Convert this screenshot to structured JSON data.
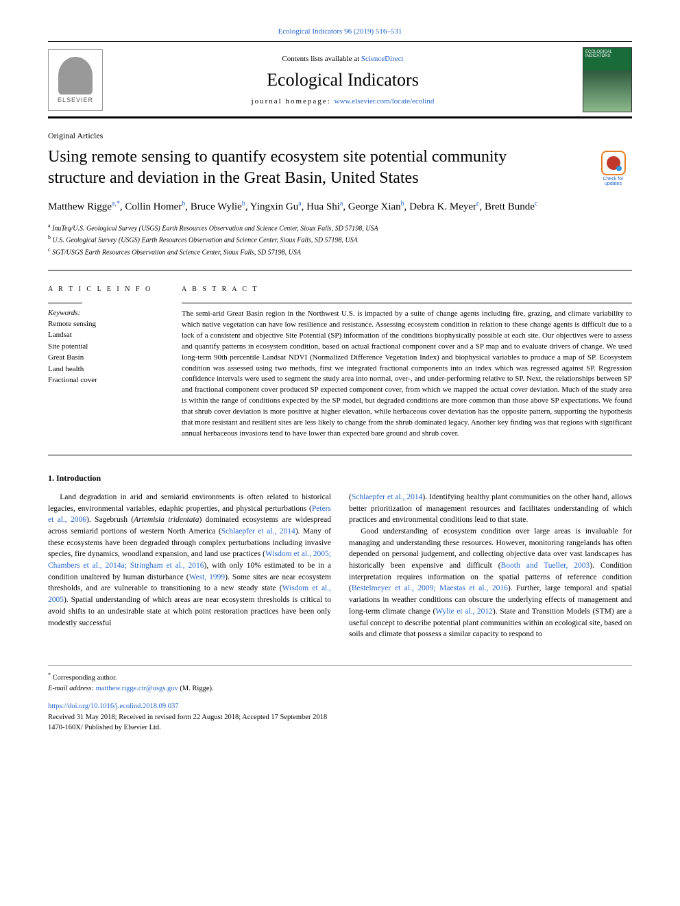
{
  "header": {
    "citation": "Ecological Indicators 96 (2019) 516–531",
    "contents_prefix": "Contents lists available at ",
    "contents_link": "ScienceDirect",
    "journal_title": "Ecological Indicators",
    "homepage_label": "journal homepage: ",
    "homepage_url": "www.elsevier.com/locate/ecolind",
    "publisher": "ELSEVIER",
    "cover_caption": "ECOLOGICAL INDICATORS"
  },
  "article": {
    "type": "Original Articles",
    "title": "Using remote sensing to quantify ecosystem site potential community structure and deviation in the Great Basin, United States",
    "check_updates": "Check for updates",
    "authors_html": "Matthew Rigge<span class='sup'>a,*</span>, Collin Homer<span class='sup'>b</span>, Bruce Wylie<span class='sup'>b</span>, Yingxin Gu<span class='sup'>a</span>, Hua Shi<span class='sup'>a</span>, George Xian<span class='sup'>b</span>, Debra K. Meyer<span class='sup'>c</span>, Brett Bunde<span class='sup'>c</span>",
    "affiliations": [
      "InuTeq/U.S. Geological Survey (USGS) Earth Resources Observation and Science Center, Sioux Falls, SD 57198, USA",
      "U.S. Geological Survey (USGS) Earth Resources Observation and Science Center, Sioux Falls, SD 57198, USA",
      "SGT/USGS Earth Resources Observation and Science Center, Sioux Falls, SD 57198, USA"
    ]
  },
  "info": {
    "section_label": "A R T I C L E  I N F O",
    "keywords_label": "Keywords:",
    "keywords": [
      "Remote sensing",
      "Landsat",
      "Site potential",
      "Great Basin",
      "Land health",
      "Fractional cover"
    ]
  },
  "abstract": {
    "section_label": "A B S T R A C T",
    "text": "The semi-arid Great Basin region in the Northwest U.S. is impacted by a suite of change agents including fire, grazing, and climate variability to which native vegetation can have low resilience and resistance. Assessing ecosystem condition in relation to these change agents is difficult due to a lack of a consistent and objective Site Potential (SP) information of the conditions biophysically possible at each site. Our objectives were to assess and quantify patterns in ecosystem condition, based on actual fractional component cover and a SP map and to evaluate drivers of change. We used long-term 90th percentile Landsat NDVI (Normalized Difference Vegetation Index) and biophysical variables to produce a map of SP. Ecosystem condition was assessed using two methods, first we integrated fractional components into an index which was regressed against SP. Regression confidence intervals were used to segment the study area into normal, over-, and under-performing relative to SP. Next, the relationships between SP and fractional component cover produced SP expected component cover, from which we mapped the actual cover deviation. Much of the study area is within the range of conditions expected by the SP model, but degraded conditions are more common than those above SP expectations. We found that shrub cover deviation is more positive at higher elevation, while herbaceous cover deviation has the opposite pattern, supporting the hypothesis that more resistant and resilient sites are less likely to change from the shrub dominated legacy. Another key finding was that regions with significant annual herbaceous invasions tend to have lower than expected bare ground and shrub cover."
  },
  "body": {
    "section_heading": "1. Introduction",
    "para1_html": "Land degradation in arid and semiarid environments is often related to historical legacies, environmental variables, edaphic properties, and physical perturbations (<a href='#'>Peters et al., 2006</a>). Sagebrush (<span class='italic'>Artemisia tridentata</span>) dominated ecosystems are widespread across semiarid portions of western North America (<a href='#'>Schlaepfer et al., 2014</a>). Many of these ecosystems have been degraded through complex perturbations including invasive species, fire dynamics, woodland expansion, and land use practices (<a href='#'>Wisdom et al., 2005; Chambers et al., 2014a; Stringham et al., 2016</a>), with only 10% estimated to be in a condition unaltered by human disturbance (<a href='#'>West, 1999</a>). Some sites are near ecosystem thresholds, and are vulnerable to transitioning to a new steady state (<a href='#'>Wisdom et al., 2005</a>). Spatial understanding of which areas are near ecosystem thresholds is critical to avoid shifts to an undesirable state at which point restoration practices have been only modestly successful",
    "para2_html": "(<a href='#'>Schlaepfer et al., 2014</a>). Identifying healthy plant communities on the other hand, allows better prioritization of management resources and facilitates understanding of which practices and environmental conditions lead to that state.",
    "para3_html": "Good understanding of ecosystem condition over large areas is invaluable for managing and understanding these resources. However, monitoring rangelands has often depended on personal judgement, and collecting objective data over vast landscapes has historically been expensive and difficult (<a href='#'>Booth and Tueller, 2003</a>). Condition interpretation requires information on the spatial patterns of reference condition (<a href='#'>Bestelmeyer et al., 2009; Maestas et al., 2016</a>). Further, large temporal and spatial variations in weather conditions can obscure the underlying effects of management and long-term climate change (<a href='#'>Wylie et al., 2012</a>). State and Transition Models (STM) are a useful concept to describe potential plant communities within an ecological site, based on soils and climate that possess a similar capacity to respond to"
  },
  "footer": {
    "corresponding": "Corresponding author.",
    "email_label": "E-mail address: ",
    "email": "matthew.rigge.ctr@usgs.gov",
    "email_suffix": " (M. Rigge).",
    "doi": "https://doi.org/10.1016/j.ecolind.2018.09.037",
    "received": "Received 31 May 2018; Received in revised form 22 August 2018; Accepted 17 September 2018",
    "copyright": "1470-160X/ Published by Elsevier Ltd."
  },
  "colors": {
    "link": "#2563c9",
    "text": "#000000",
    "rule": "#000000"
  }
}
